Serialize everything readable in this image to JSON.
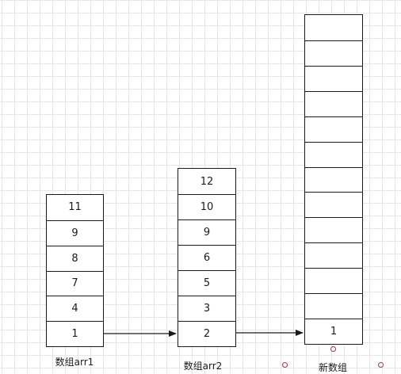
{
  "arrays": [
    {
      "id": "arr1",
      "label": "数组arr1",
      "cells": [
        "1",
        "4",
        "7",
        "8",
        "9",
        "11"
      ]
    },
    {
      "id": "arr2",
      "label": "数组arr2",
      "cells": [
        "2",
        "3",
        "5",
        "6",
        "9",
        "10",
        "12"
      ]
    },
    {
      "id": "new",
      "label": "新数组",
      "cells": [
        "1",
        "",
        "",
        "",
        "",
        "",
        "",
        "",
        "",
        "",
        "",
        "",
        ""
      ]
    }
  ],
  "colors": {
    "stroke": "#1a1a1a",
    "grid": "#e6e6e6",
    "handle": "#b03040"
  }
}
